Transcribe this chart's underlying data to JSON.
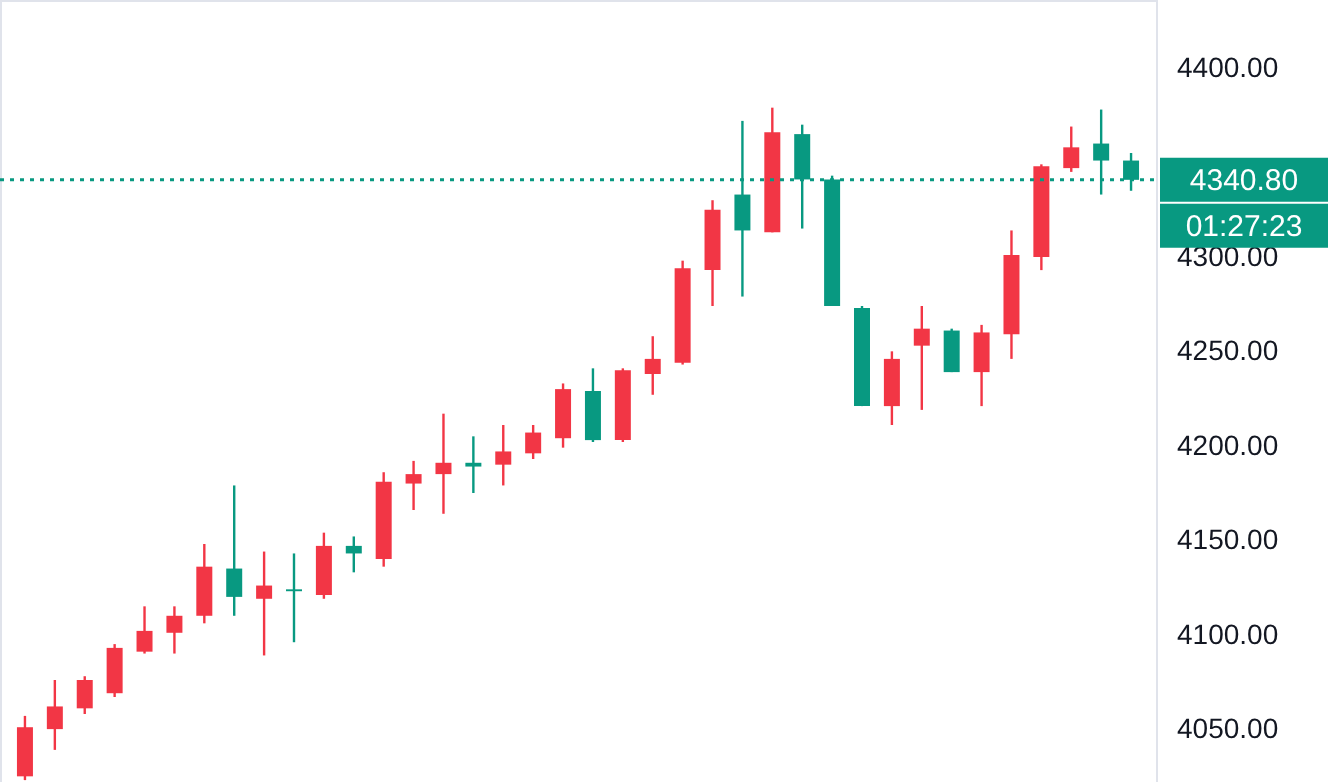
{
  "chart_data": {
    "type": "candlestick",
    "categories": [
      null,
      null,
      null,
      null,
      null,
      null,
      null,
      null,
      null,
      null,
      null,
      null,
      null,
      null,
      null,
      null,
      null,
      null,
      null,
      null,
      null,
      null,
      null,
      null,
      null,
      null,
      null,
      null,
      null,
      null,
      null,
      null,
      null,
      null,
      null,
      null,
      null,
      null
    ],
    "ohlc": [
      [
        4025,
        4057,
        4023,
        4051
      ],
      [
        4050,
        4076,
        4039,
        4062
      ],
      [
        4061,
        4078,
        4058,
        4076
      ],
      [
        4069,
        4095,
        4067,
        4093
      ],
      [
        4091,
        4115,
        4090,
        4102
      ],
      [
        4101,
        4115,
        4090,
        4110
      ],
      [
        4110,
        4148,
        4106,
        4136
      ],
      [
        4135,
        4179,
        4110,
        4120
      ],
      [
        4119,
        4144,
        4089,
        4126
      ],
      [
        4124,
        4143,
        4096,
        4123
      ],
      [
        4121,
        4154,
        4119,
        4147
      ],
      [
        4147,
        4152,
        4133,
        4143
      ],
      [
        4140,
        4186,
        4136,
        4181
      ],
      [
        4180,
        4192,
        4166,
        4185
      ],
      [
        4185,
        4217,
        4164,
        4191
      ],
      [
        4191,
        4205,
        4175,
        4189
      ],
      [
        4190,
        4211,
        4179,
        4197
      ],
      [
        4196,
        4211,
        4193,
        4207
      ],
      [
        4204,
        4233,
        4199,
        4230
      ],
      [
        4229,
        4241,
        4202,
        4203
      ],
      [
        4203,
        4241,
        4202,
        4240
      ],
      [
        4238,
        4258,
        4227,
        4246
      ],
      [
        4244,
        4298,
        4243,
        4294
      ],
      [
        4293,
        4330,
        4274,
        4325
      ],
      [
        4333,
        4372,
        4279,
        4314
      ],
      [
        4313,
        4379,
        4313,
        4366
      ],
      [
        4365,
        4370,
        4315,
        4341
      ],
      [
        4341,
        4343,
        4274,
        4274
      ],
      [
        4273,
        4274,
        4221,
        4221
      ],
      [
        4221,
        4250,
        4211,
        4246
      ],
      [
        4253,
        4274,
        4219,
        4262
      ],
      [
        4261,
        4262,
        4239,
        4239
      ],
      [
        4239,
        4264,
        4221,
        4260
      ],
      [
        4259,
        4314,
        4246,
        4301
      ],
      [
        4300,
        4349,
        4293,
        4348
      ],
      [
        4347,
        4369,
        4345,
        4358
      ],
      [
        4360,
        4378,
        4333,
        4351
      ],
      [
        4351,
        4355,
        4335,
        4340.8
      ]
    ],
    "colors": [
      "#f23645",
      "#f23645",
      "#f23645",
      "#f23645",
      "#f23645",
      "#f23645",
      "#f23645",
      "#089981",
      "#f23645",
      "#089981",
      "#f23645",
      "#089981",
      "#f23645",
      "#f23645",
      "#f23645",
      "#089981",
      "#f23645",
      "#f23645",
      "#f23645",
      "#089981",
      "#f23645",
      "#f23645",
      "#f23645",
      "#f23645",
      "#089981",
      "#f23645",
      "#089981",
      "#089981",
      "#089981",
      "#f23645",
      "#f23645",
      "#089981",
      "#f23645",
      "#f23645",
      "#f23645",
      "#f23645",
      "#089981",
      "#089981"
    ],
    "ylim": [
      4022,
      4436
    ],
    "yticks": [
      {
        "value": 4050,
        "label": "4050.00"
      },
      {
        "value": 4100,
        "label": "4100.00"
      },
      {
        "value": 4150,
        "label": "4150.00"
      },
      {
        "value": 4200,
        "label": "4200.00"
      },
      {
        "value": 4250,
        "label": "4250.00"
      },
      {
        "value": 4300,
        "label": "4300.00"
      },
      {
        "value": 4400,
        "label": "4400.00"
      }
    ],
    "tick_labels": "y",
    "legend": false,
    "ref_lines": [
      {
        "axis": "y",
        "value": 4340.8,
        "label": "4340.80",
        "color": "#089981",
        "line_style": "dotted"
      }
    ],
    "annotations": [
      "01:27:23"
    ]
  }
}
